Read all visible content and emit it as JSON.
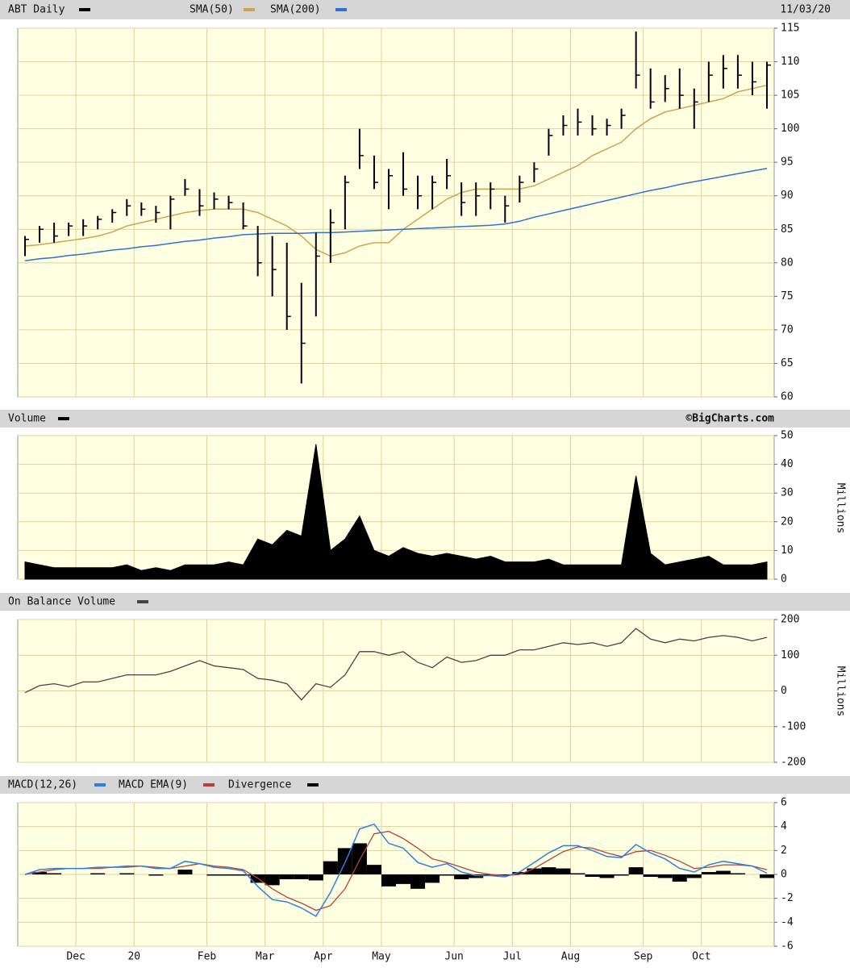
{
  "chart_data": [
    {
      "type": "ohlc",
      "title": "ABT Daily",
      "date": "11/03/20",
      "color": "#000000",
      "high": [
        84,
        85.5,
        86,
        86,
        86.5,
        87,
        88,
        89.5,
        89,
        88.5,
        90,
        92.5,
        91,
        90.5,
        90,
        89,
        85.5,
        84,
        83,
        77,
        84.5,
        88,
        93,
        100,
        96,
        94,
        96.5,
        93,
        93,
        95.5,
        92,
        92,
        92,
        90,
        93,
        95,
        100,
        102,
        103,
        102,
        101.5,
        103,
        114.5,
        109,
        108,
        109,
        106,
        110,
        111,
        111,
        110,
        110
      ],
      "low": [
        81,
        83,
        83,
        84,
        84,
        85,
        86,
        87,
        87,
        86,
        85,
        90,
        87,
        88,
        88,
        85,
        78,
        75,
        70,
        62,
        72,
        80,
        85,
        94,
        91,
        88,
        90,
        88,
        88,
        91,
        87,
        87,
        88,
        86,
        89,
        92,
        96,
        99,
        99,
        99,
        99,
        100,
        106,
        103,
        104,
        103,
        100,
        104,
        106,
        106,
        105,
        103
      ],
      "close": [
        83.5,
        85,
        84,
        85.5,
        85.5,
        86.5,
        87.5,
        88.5,
        88,
        87.5,
        89.5,
        91,
        88.5,
        89.5,
        89,
        85.5,
        80,
        79,
        72,
        68,
        81,
        86,
        92,
        96,
        92,
        93,
        91,
        90,
        92,
        93,
        89,
        90,
        91,
        88.5,
        92,
        94,
        99,
        100.5,
        101,
        100,
        100.5,
        102,
        108,
        104,
        106,
        105,
        104,
        108,
        109,
        108,
        107,
        109.5
      ],
      "series": [
        {
          "name": "SMA(50)",
          "color": "#d4a24c",
          "values": [
            82.5,
            82.7,
            83,
            83.3,
            83.6,
            84,
            84.6,
            85.5,
            86,
            86.5,
            87,
            87.5,
            87.8,
            88,
            88,
            88,
            87.5,
            86.5,
            85.5,
            84,
            82,
            81,
            81.5,
            82.5,
            83,
            83,
            85,
            86.5,
            88,
            89.5,
            90.5,
            91,
            91,
            91,
            91,
            91.5,
            92.5,
            93.5,
            94.5,
            96,
            97,
            98,
            100,
            101.5,
            102.5,
            103,
            103.5,
            104,
            104.5,
            105.5,
            106,
            106.5
          ]
        },
        {
          "name": "SMA(200)",
          "color": "#2f6fd6",
          "values": [
            80.3,
            80.6,
            80.8,
            81.1,
            81.3,
            81.6,
            81.9,
            82.1,
            82.4,
            82.6,
            82.9,
            83.2,
            83.4,
            83.7,
            83.9,
            84.2,
            84.3,
            84.4,
            84.4,
            84.4,
            84.5,
            84.5,
            84.6,
            84.7,
            84.8,
            84.9,
            85,
            85.1,
            85.2,
            85.3,
            85.4,
            85.5,
            85.6,
            85.8,
            86.2,
            86.8,
            87.3,
            87.8,
            88.3,
            88.8,
            89.3,
            89.8,
            90.3,
            90.8,
            91.2,
            91.7,
            92.1,
            92.5,
            92.9,
            93.3,
            93.7,
            94.1
          ]
        }
      ],
      "ylim": [
        60,
        115
      ],
      "yticks": [
        60,
        65,
        70,
        75,
        80,
        85,
        90,
        95,
        100,
        105,
        110,
        115
      ],
      "grid": true
    },
    {
      "type": "area",
      "title": "Volume",
      "source": "©BigCharts.com",
      "y_label": "Millions",
      "color": "#000000",
      "values": [
        6,
        5,
        4,
        4,
        4,
        4,
        4,
        5,
        3,
        4,
        3,
        5,
        5,
        5,
        6,
        5,
        14,
        12,
        17,
        15,
        47,
        10,
        14,
        22,
        10,
        8,
        11,
        9,
        8,
        9,
        8,
        7,
        8,
        6,
        6,
        6,
        7,
        5,
        5,
        5,
        5,
        5,
        36,
        9,
        5,
        6,
        7,
        8,
        5,
        5,
        5,
        6
      ],
      "ylim": [
        0,
        50
      ],
      "yticks": [
        0,
        10,
        20,
        30,
        40,
        50
      ],
      "grid": true
    },
    {
      "type": "line",
      "title": "On Balance Volume",
      "y_label": "Millions",
      "color": "#444444",
      "values": [
        -5,
        15,
        20,
        12,
        25,
        25,
        35,
        45,
        45,
        45,
        55,
        70,
        85,
        70,
        65,
        60,
        35,
        30,
        20,
        -25,
        20,
        10,
        45,
        110,
        110,
        100,
        110,
        80,
        65,
        95,
        80,
        85,
        100,
        100,
        115,
        115,
        125,
        135,
        130,
        135,
        125,
        135,
        175,
        145,
        135,
        145,
        140,
        150,
        155,
        150,
        140,
        150
      ],
      "ylim": [
        -200,
        200
      ],
      "yticks": [
        -200,
        -100,
        0,
        100,
        200
      ],
      "grid": true
    },
    {
      "type": "macd",
      "categories": [
        null,
        null,
        null,
        null,
        "Dec",
        null,
        null,
        null,
        "20",
        null,
        null,
        null,
        null,
        "Feb",
        null,
        null,
        null,
        "Mar",
        null,
        null,
        null,
        "Apr",
        null,
        null,
        null,
        "May",
        null,
        null,
        null,
        null,
        "Jun",
        null,
        null,
        null,
        "Jul",
        null,
        null,
        null,
        "Aug",
        null,
        null,
        null,
        null,
        "Sep",
        null,
        null,
        null,
        "Oct",
        null,
        null,
        null,
        null
      ],
      "series": [
        {
          "name": "MACD(12,26)",
          "color": "#2f7fe0",
          "values": [
            0,
            0.4,
            0.5,
            0.5,
            0.5,
            0.6,
            0.6,
            0.7,
            0.7,
            0.5,
            0.5,
            1.1,
            0.9,
            0.6,
            0.5,
            0.3,
            -1.0,
            -2.1,
            -2.3,
            -2.8,
            -3.5,
            -1.5,
            1.0,
            3.8,
            4.2,
            2.6,
            2.2,
            1.0,
            0.6,
            0.9,
            0.2,
            -0.1,
            -0.1,
            -0.2,
            0.2,
            1.0,
            1.8,
            2.4,
            2.4,
            2.0,
            1.5,
            1.4,
            2.5,
            1.8,
            1.3,
            0.5,
            0.2,
            0.8,
            1.1,
            0.9,
            0.7,
            0.1
          ]
        },
        {
          "name": "MACD EMA(9)",
          "color": "#b8413a",
          "values": [
            0,
            0.2,
            0.4,
            0.5,
            0.5,
            0.5,
            0.6,
            0.6,
            0.7,
            0.6,
            0.5,
            0.7,
            0.9,
            0.7,
            0.6,
            0.4,
            -0.3,
            -1.2,
            -1.9,
            -2.4,
            -3.0,
            -2.6,
            -1.2,
            1.2,
            3.4,
            3.6,
            3.0,
            2.2,
            1.3,
            1.0,
            0.6,
            0.2,
            0.0,
            -0.1,
            0.0,
            0.5,
            1.2,
            1.9,
            2.3,
            2.2,
            1.8,
            1.5,
            1.9,
            2.0,
            1.6,
            1.1,
            0.5,
            0.6,
            0.8,
            0.8,
            0.7,
            0.4
          ]
        },
        {
          "name": "Divergence",
          "color": "#000000",
          "values": [
            0,
            0.2,
            0.1,
            0,
            0,
            0.1,
            0,
            0.1,
            0,
            -0.1,
            0,
            0.4,
            0,
            -0.1,
            -0.1,
            -0.1,
            -0.7,
            -0.9,
            -0.4,
            -0.4,
            -0.5,
            1.1,
            2.2,
            2.6,
            0.8,
            -1.0,
            -0.8,
            -1.2,
            -0.7,
            -0.1,
            -0.4,
            -0.3,
            -0.1,
            -0.1,
            0.2,
            0.5,
            0.6,
            0.5,
            0.1,
            -0.2,
            -0.3,
            -0.1,
            0.6,
            -0.2,
            -0.3,
            -0.6,
            -0.3,
            0.2,
            0.3,
            0.1,
            0,
            -0.3
          ]
        }
      ],
      "ylim": [
        -6,
        6
      ],
      "yticks": [
        -6,
        -4,
        -2,
        0,
        2,
        4,
        6
      ],
      "grid": true
    }
  ]
}
